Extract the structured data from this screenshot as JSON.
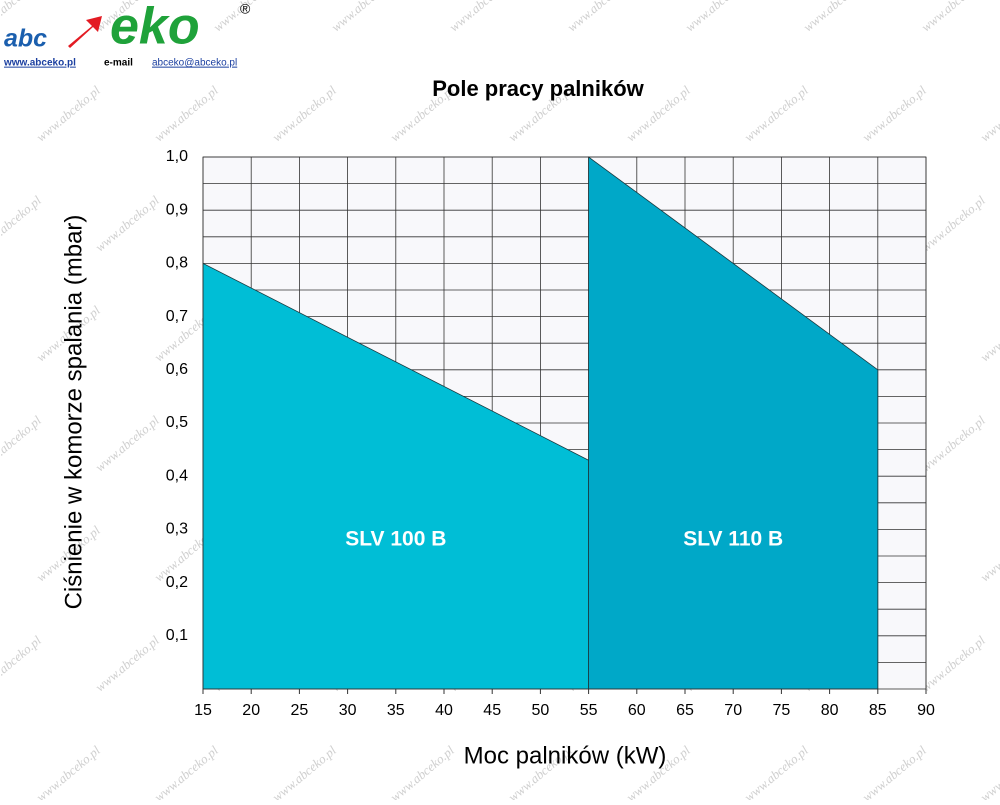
{
  "header": {
    "logo_abc": "abc",
    "logo_eko": "eko",
    "registered": "®",
    "website": "www.abceko.pl",
    "email_label": "e-mail",
    "email": "abceko@abceko.pl",
    "watermark": "www.abceko.pl"
  },
  "chart_data": {
    "type": "area",
    "title": "Pole pracy palników",
    "x_label": "Moc palników (kW)",
    "y_label": "Ciśnienie w komorze spalania (mbar)",
    "xlim": [
      15,
      90
    ],
    "ylim": [
      0,
      1.0
    ],
    "xticks": [
      15,
      20,
      25,
      30,
      35,
      40,
      45,
      50,
      55,
      60,
      65,
      70,
      75,
      80,
      85,
      90
    ],
    "yticks": [
      {
        "value": 0.1,
        "label": "0,1"
      },
      {
        "value": 0.2,
        "label": "0,2"
      },
      {
        "value": 0.3,
        "label": "0,3"
      },
      {
        "value": 0.4,
        "label": "0,4"
      },
      {
        "value": 0.5,
        "label": "0,5"
      },
      {
        "value": 0.6,
        "label": "0,6"
      },
      {
        "value": 0.7,
        "label": "0,7"
      },
      {
        "value": 0.8,
        "label": "0,8"
      },
      {
        "value": 0.9,
        "label": "0,9"
      },
      {
        "value": 1.0,
        "label": "1,0"
      }
    ],
    "y_minor_ticks": [
      0.05,
      0.15,
      0.25,
      0.35,
      0.45,
      0.55,
      0.65,
      0.75,
      0.85,
      0.95
    ],
    "grid": true,
    "series": [
      {
        "name": "SLV 100 B",
        "color": "#00bed6",
        "x": [
          15,
          55
        ],
        "values": [
          0.8,
          0.43
        ]
      },
      {
        "name": "SLV 110 B",
        "color": "#00a8c8",
        "x": [
          55,
          85
        ],
        "values": [
          1.0,
          0.6
        ]
      }
    ]
  }
}
